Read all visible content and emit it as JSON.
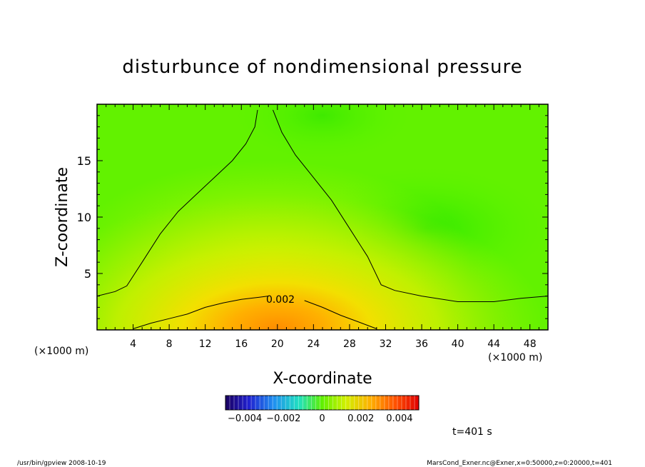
{
  "chart_data": {
    "type": "heatmap",
    "title": "disturbunce of nondimensional pressure",
    "xlabel": "X-coordinate",
    "ylabel": "Z-coordinate",
    "x_unit_left": "(×1000 m)",
    "x_unit_right": "(×1000 m)",
    "xlim": [
      0,
      50
    ],
    "ylim": [
      0,
      20
    ],
    "x_ticks": [
      "4",
      "8",
      "12",
      "16",
      "20",
      "24",
      "28",
      "32",
      "36",
      "40",
      "44",
      "48"
    ],
    "y_ticks": [
      "5",
      "10",
      "15"
    ],
    "contour_label": "0.002",
    "colorbar": {
      "range": [
        -0.005,
        0.005
      ],
      "tick_labels": [
        "−0.004",
        "−0.002",
        "0",
        "0.002",
        "0.004"
      ],
      "tick_values": [
        -0.004,
        -0.002,
        0,
        0.002,
        0.004
      ]
    },
    "time_label": "t=401 s",
    "footer_left": "/usr/bin/gpview   2008-10-19",
    "footer_right": "MarsCond_Exner.nc@Exner,x=0:50000,z=0:20000,t=401",
    "contour_0002_outer": [
      [
        0,
        3.0
      ],
      [
        2,
        3.4
      ],
      [
        3.3,
        3.9
      ],
      [
        5,
        6
      ],
      [
        7,
        8.5
      ],
      [
        9,
        10.5
      ],
      [
        11,
        12
      ],
      [
        13,
        13.5
      ],
      [
        15,
        15
      ],
      [
        16.5,
        16.5
      ],
      [
        17.5,
        18
      ],
      [
        17.8,
        19.5
      ]
    ],
    "contour_0002_outer_right": [
      [
        19.5,
        19.5
      ],
      [
        20.5,
        17.5
      ],
      [
        22,
        15.5
      ],
      [
        24,
        13.5
      ],
      [
        26,
        11.5
      ],
      [
        28,
        9
      ],
      [
        30,
        6.5
      ],
      [
        31.5,
        4
      ],
      [
        33,
        3.5
      ],
      [
        36,
        3.0
      ],
      [
        40,
        2.5
      ],
      [
        44,
        2.5
      ],
      [
        47,
        2.8
      ],
      [
        50,
        3.0
      ]
    ],
    "contour_0002_inner": [
      [
        4,
        0.1
      ],
      [
        6,
        0.6
      ],
      [
        8,
        1.0
      ],
      [
        10,
        1.4
      ],
      [
        12,
        2.0
      ],
      [
        14,
        2.4
      ],
      [
        16,
        2.7
      ],
      [
        18,
        2.9
      ],
      [
        19,
        3.0
      ]
    ],
    "contour_0002_inner_right": [
      [
        23,
        2.6
      ],
      [
        25,
        2.0
      ],
      [
        27,
        1.3
      ],
      [
        29,
        0.7
      ],
      [
        31,
        0.1
      ]
    ]
  }
}
